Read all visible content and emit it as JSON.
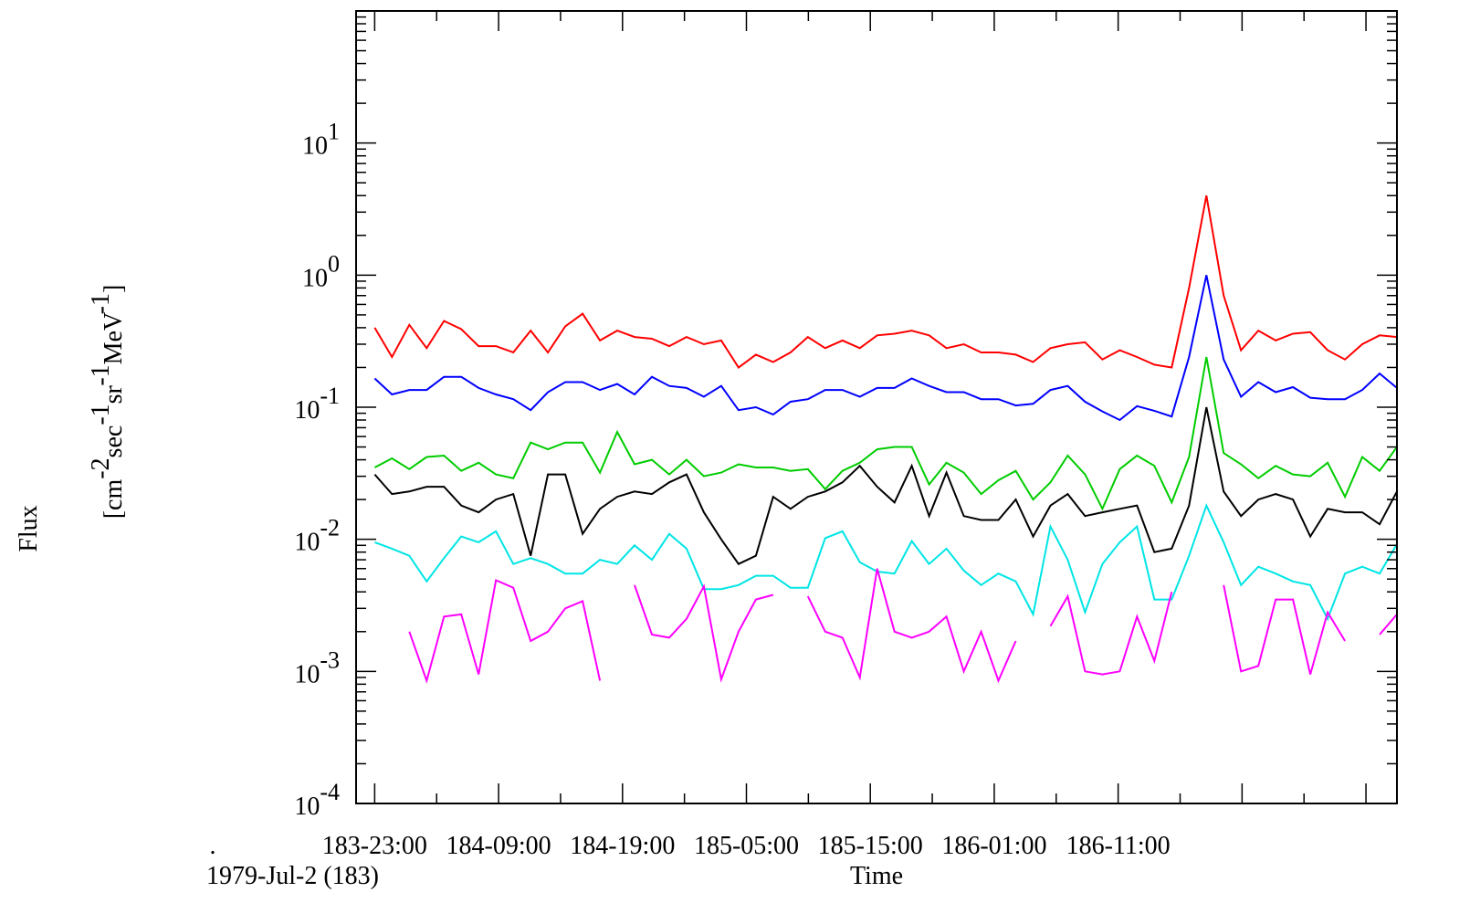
{
  "chart_data": {
    "type": "line",
    "xlabel": "Time",
    "ylabel": "Flux",
    "yunits": "[cm-2sec-1sr-1MeV-1]",
    "yscale": "log",
    "ylim": [
      0.0001,
      100
    ],
    "xlim_hours": [
      0,
      84
    ],
    "x_label_offset_hours": 1.5,
    "date_label": "1979-Jul-2 (183)",
    "corner_mark": ".",
    "grid": false,
    "legend": "none",
    "x_tick_labels": [
      "183-23:00",
      "184-09:00",
      "184-19:00",
      "185-05:00",
      "185-15:00",
      "186-01:00",
      "186-11:00"
    ],
    "y_ticks": [
      {
        "value": 0.0001,
        "base": "10",
        "exp": "-4"
      },
      {
        "value": 0.001,
        "base": "10",
        "exp": "-3"
      },
      {
        "value": 0.01,
        "base": "10",
        "exp": "-2"
      },
      {
        "value": 0.1,
        "base": "10",
        "exp": "-1"
      },
      {
        "value": 1,
        "base": "10",
        "exp": "0"
      },
      {
        "value": 10,
        "base": "10",
        "exp": "1"
      }
    ],
    "series": [
      {
        "color": "#ff0000",
        "values": [
          0.4,
          0.24,
          0.42,
          0.28,
          0.45,
          0.39,
          0.29,
          0.29,
          0.26,
          0.38,
          0.26,
          0.41,
          0.51,
          0.32,
          0.38,
          0.34,
          0.33,
          0.29,
          0.34,
          0.3,
          0.32,
          0.2,
          0.25,
          0.22,
          0.26,
          0.34,
          0.28,
          0.32,
          0.28,
          0.35,
          0.36,
          0.38,
          0.35,
          0.28,
          0.3,
          0.26,
          0.26,
          0.25,
          0.22,
          0.28,
          0.3,
          0.31,
          0.23,
          0.27,
          0.24,
          0.21,
          0.2,
          0.8,
          4.0,
          0.7,
          0.27,
          0.38,
          0.32,
          0.36,
          0.37,
          0.27,
          0.23,
          0.3,
          0.35,
          0.34
        ]
      },
      {
        "color": "#0000ff",
        "values": [
          0.165,
          0.125,
          0.135,
          0.135,
          0.17,
          0.17,
          0.14,
          0.125,
          0.115,
          0.095,
          0.13,
          0.155,
          0.155,
          0.135,
          0.15,
          0.125,
          0.17,
          0.145,
          0.14,
          0.12,
          0.145,
          0.095,
          0.1,
          0.088,
          0.11,
          0.115,
          0.135,
          0.135,
          0.12,
          0.14,
          0.14,
          0.165,
          0.145,
          0.13,
          0.13,
          0.115,
          0.115,
          0.103,
          0.106,
          0.135,
          0.145,
          0.11,
          0.093,
          0.08,
          0.102,
          0.094,
          0.085,
          0.24,
          1.0,
          0.23,
          0.12,
          0.155,
          0.13,
          0.142,
          0.118,
          0.115,
          0.115,
          0.135,
          0.18,
          0.14
        ]
      },
      {
        "color": "#00cc00",
        "values": [
          0.035,
          0.041,
          0.034,
          0.042,
          0.043,
          0.033,
          0.038,
          0.031,
          0.029,
          0.054,
          0.048,
          0.054,
          0.054,
          0.032,
          0.065,
          0.037,
          0.04,
          0.031,
          0.04,
          0.03,
          0.032,
          0.037,
          0.035,
          0.035,
          0.033,
          0.034,
          0.024,
          0.033,
          0.038,
          0.048,
          0.05,
          0.05,
          0.026,
          0.038,
          0.032,
          0.022,
          0.028,
          0.033,
          0.02,
          0.027,
          0.043,
          0.031,
          0.017,
          0.034,
          0.043,
          0.036,
          0.019,
          0.042,
          0.24,
          0.045,
          0.037,
          0.029,
          0.036,
          0.031,
          0.03,
          0.038,
          0.021,
          0.042,
          0.033,
          0.05
        ]
      },
      {
        "color": "#000000",
        "values": [
          0.031,
          0.022,
          0.023,
          0.025,
          0.025,
          0.018,
          0.016,
          0.02,
          0.022,
          0.0075,
          0.031,
          0.031,
          0.011,
          0.017,
          0.021,
          0.023,
          0.022,
          0.027,
          0.031,
          0.016,
          0.01,
          0.0065,
          0.0075,
          0.021,
          0.017,
          0.021,
          0.023,
          0.027,
          0.036,
          0.025,
          0.019,
          0.036,
          0.015,
          0.032,
          0.015,
          0.014,
          0.014,
          0.02,
          0.0105,
          0.018,
          0.022,
          0.015,
          0.016,
          0.017,
          0.018,
          0.008,
          0.0085,
          0.018,
          0.1,
          0.023,
          0.015,
          0.02,
          0.022,
          0.02,
          0.0105,
          0.017,
          0.016,
          0.016,
          0.013,
          0.023
        ]
      },
      {
        "color": "#00e5e5",
        "values": [
          0.0095,
          0.0085,
          0.0075,
          0.0048,
          0.0072,
          0.0105,
          0.0095,
          0.0115,
          0.0065,
          0.0072,
          0.0065,
          0.0055,
          0.0055,
          0.007,
          0.0065,
          0.009,
          0.007,
          0.011,
          0.0085,
          0.0042,
          0.0042,
          0.0045,
          0.0053,
          0.0053,
          0.0043,
          0.0043,
          0.0102,
          0.0115,
          0.0067,
          0.0057,
          0.0055,
          0.0097,
          0.0065,
          0.0085,
          0.0058,
          0.0045,
          0.0055,
          0.0048,
          0.0027,
          0.0125,
          0.007,
          0.0028,
          0.0065,
          0.0095,
          0.0125,
          0.0035,
          0.0035,
          0.0075,
          0.018,
          0.0095,
          0.0045,
          0.0062,
          0.0055,
          0.0048,
          0.0045,
          0.0025,
          0.0055,
          0.0062,
          0.0055,
          0.0092
        ]
      },
      {
        "color": "#ff00ff",
        "values": [
          null,
          null,
          0.002,
          0.00085,
          0.0026,
          0.0027,
          0.00095,
          0.0049,
          0.0043,
          0.0017,
          0.002,
          0.003,
          0.0034,
          0.00085,
          null,
          0.0045,
          0.0019,
          0.0018,
          0.0025,
          0.0044,
          0.00087,
          0.002,
          0.0035,
          0.0038,
          null,
          0.0037,
          0.002,
          0.0018,
          0.0009,
          0.006,
          0.002,
          0.0018,
          0.002,
          0.0026,
          0.001,
          0.002,
          0.00085,
          0.0017,
          null,
          0.0022,
          0.0037,
          0.001,
          0.00095,
          0.001,
          0.0026,
          0.0012,
          0.004,
          null,
          null,
          0.0045,
          0.001,
          0.0011,
          0.0035,
          0.0035,
          0.00095,
          0.0028,
          0.0017,
          null,
          0.0019,
          0.0027
        ]
      }
    ]
  }
}
